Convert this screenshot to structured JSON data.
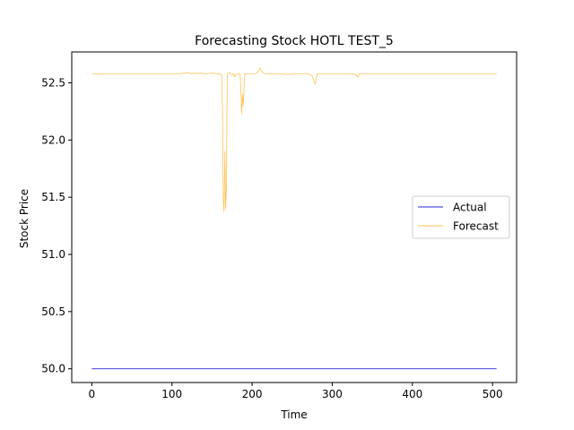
{
  "chart_data": {
    "type": "line",
    "title": "Forecasting Stock HOTL TEST_5",
    "xlabel": "Time",
    "ylabel": "Stock Price",
    "xlim": [
      -25,
      530
    ],
    "ylim": [
      49.88,
      52.77
    ],
    "x_ticks": [
      0,
      100,
      200,
      300,
      400,
      500
    ],
    "y_ticks": [
      50.0,
      50.5,
      51.0,
      51.5,
      52.0,
      52.5
    ],
    "y_tick_labels": [
      "50.0",
      "50.5",
      "51.0",
      "51.5",
      "52.0",
      "52.5"
    ],
    "grid": false,
    "legend_position": "center-right",
    "series": [
      {
        "name": "Actual",
        "color": "#0000cc",
        "points": [
          [
            0,
            50.0
          ],
          [
            505,
            50.0
          ]
        ]
      },
      {
        "name": "Forecast",
        "color": "#ffb733",
        "points": [
          [
            0,
            52.58
          ],
          [
            10,
            52.58
          ],
          [
            13,
            52.575
          ],
          [
            16,
            52.58
          ],
          [
            60,
            52.58
          ],
          [
            110,
            52.58
          ],
          [
            120,
            52.59
          ],
          [
            124,
            52.58
          ],
          [
            128,
            52.585
          ],
          [
            132,
            52.58
          ],
          [
            135,
            52.59
          ],
          [
            138,
            52.58
          ],
          [
            145,
            52.58
          ],
          [
            150,
            52.585
          ],
          [
            155,
            52.58
          ],
          [
            160,
            52.58
          ],
          [
            162,
            52.57
          ],
          [
            163,
            52.3
          ],
          [
            164,
            51.5
          ],
          [
            165,
            51.37
          ],
          [
            166,
            51.9
          ],
          [
            167,
            51.4
          ],
          [
            168,
            51.6
          ],
          [
            169,
            52.58
          ],
          [
            172,
            52.59
          ],
          [
            175,
            52.57
          ],
          [
            177,
            52.58
          ],
          [
            178,
            52.55
          ],
          [
            180,
            52.58
          ],
          [
            185,
            52.58
          ],
          [
            186,
            52.45
          ],
          [
            187,
            52.23
          ],
          [
            188,
            52.4
          ],
          [
            189,
            52.3
          ],
          [
            190,
            52.46
          ],
          [
            191,
            52.58
          ],
          [
            195,
            52.58
          ],
          [
            200,
            52.58
          ],
          [
            205,
            52.58
          ],
          [
            208,
            52.6
          ],
          [
            210,
            52.63
          ],
          [
            212,
            52.6
          ],
          [
            215,
            52.58
          ],
          [
            240,
            52.58
          ],
          [
            245,
            52.57
          ],
          [
            250,
            52.58
          ],
          [
            270,
            52.58
          ],
          [
            275,
            52.56
          ],
          [
            277,
            52.52
          ],
          [
            279,
            52.49
          ],
          [
            281,
            52.58
          ],
          [
            300,
            52.58
          ],
          [
            325,
            52.58
          ],
          [
            330,
            52.57
          ],
          [
            332,
            52.55
          ],
          [
            334,
            52.58
          ],
          [
            505,
            52.58
          ]
        ]
      }
    ]
  }
}
